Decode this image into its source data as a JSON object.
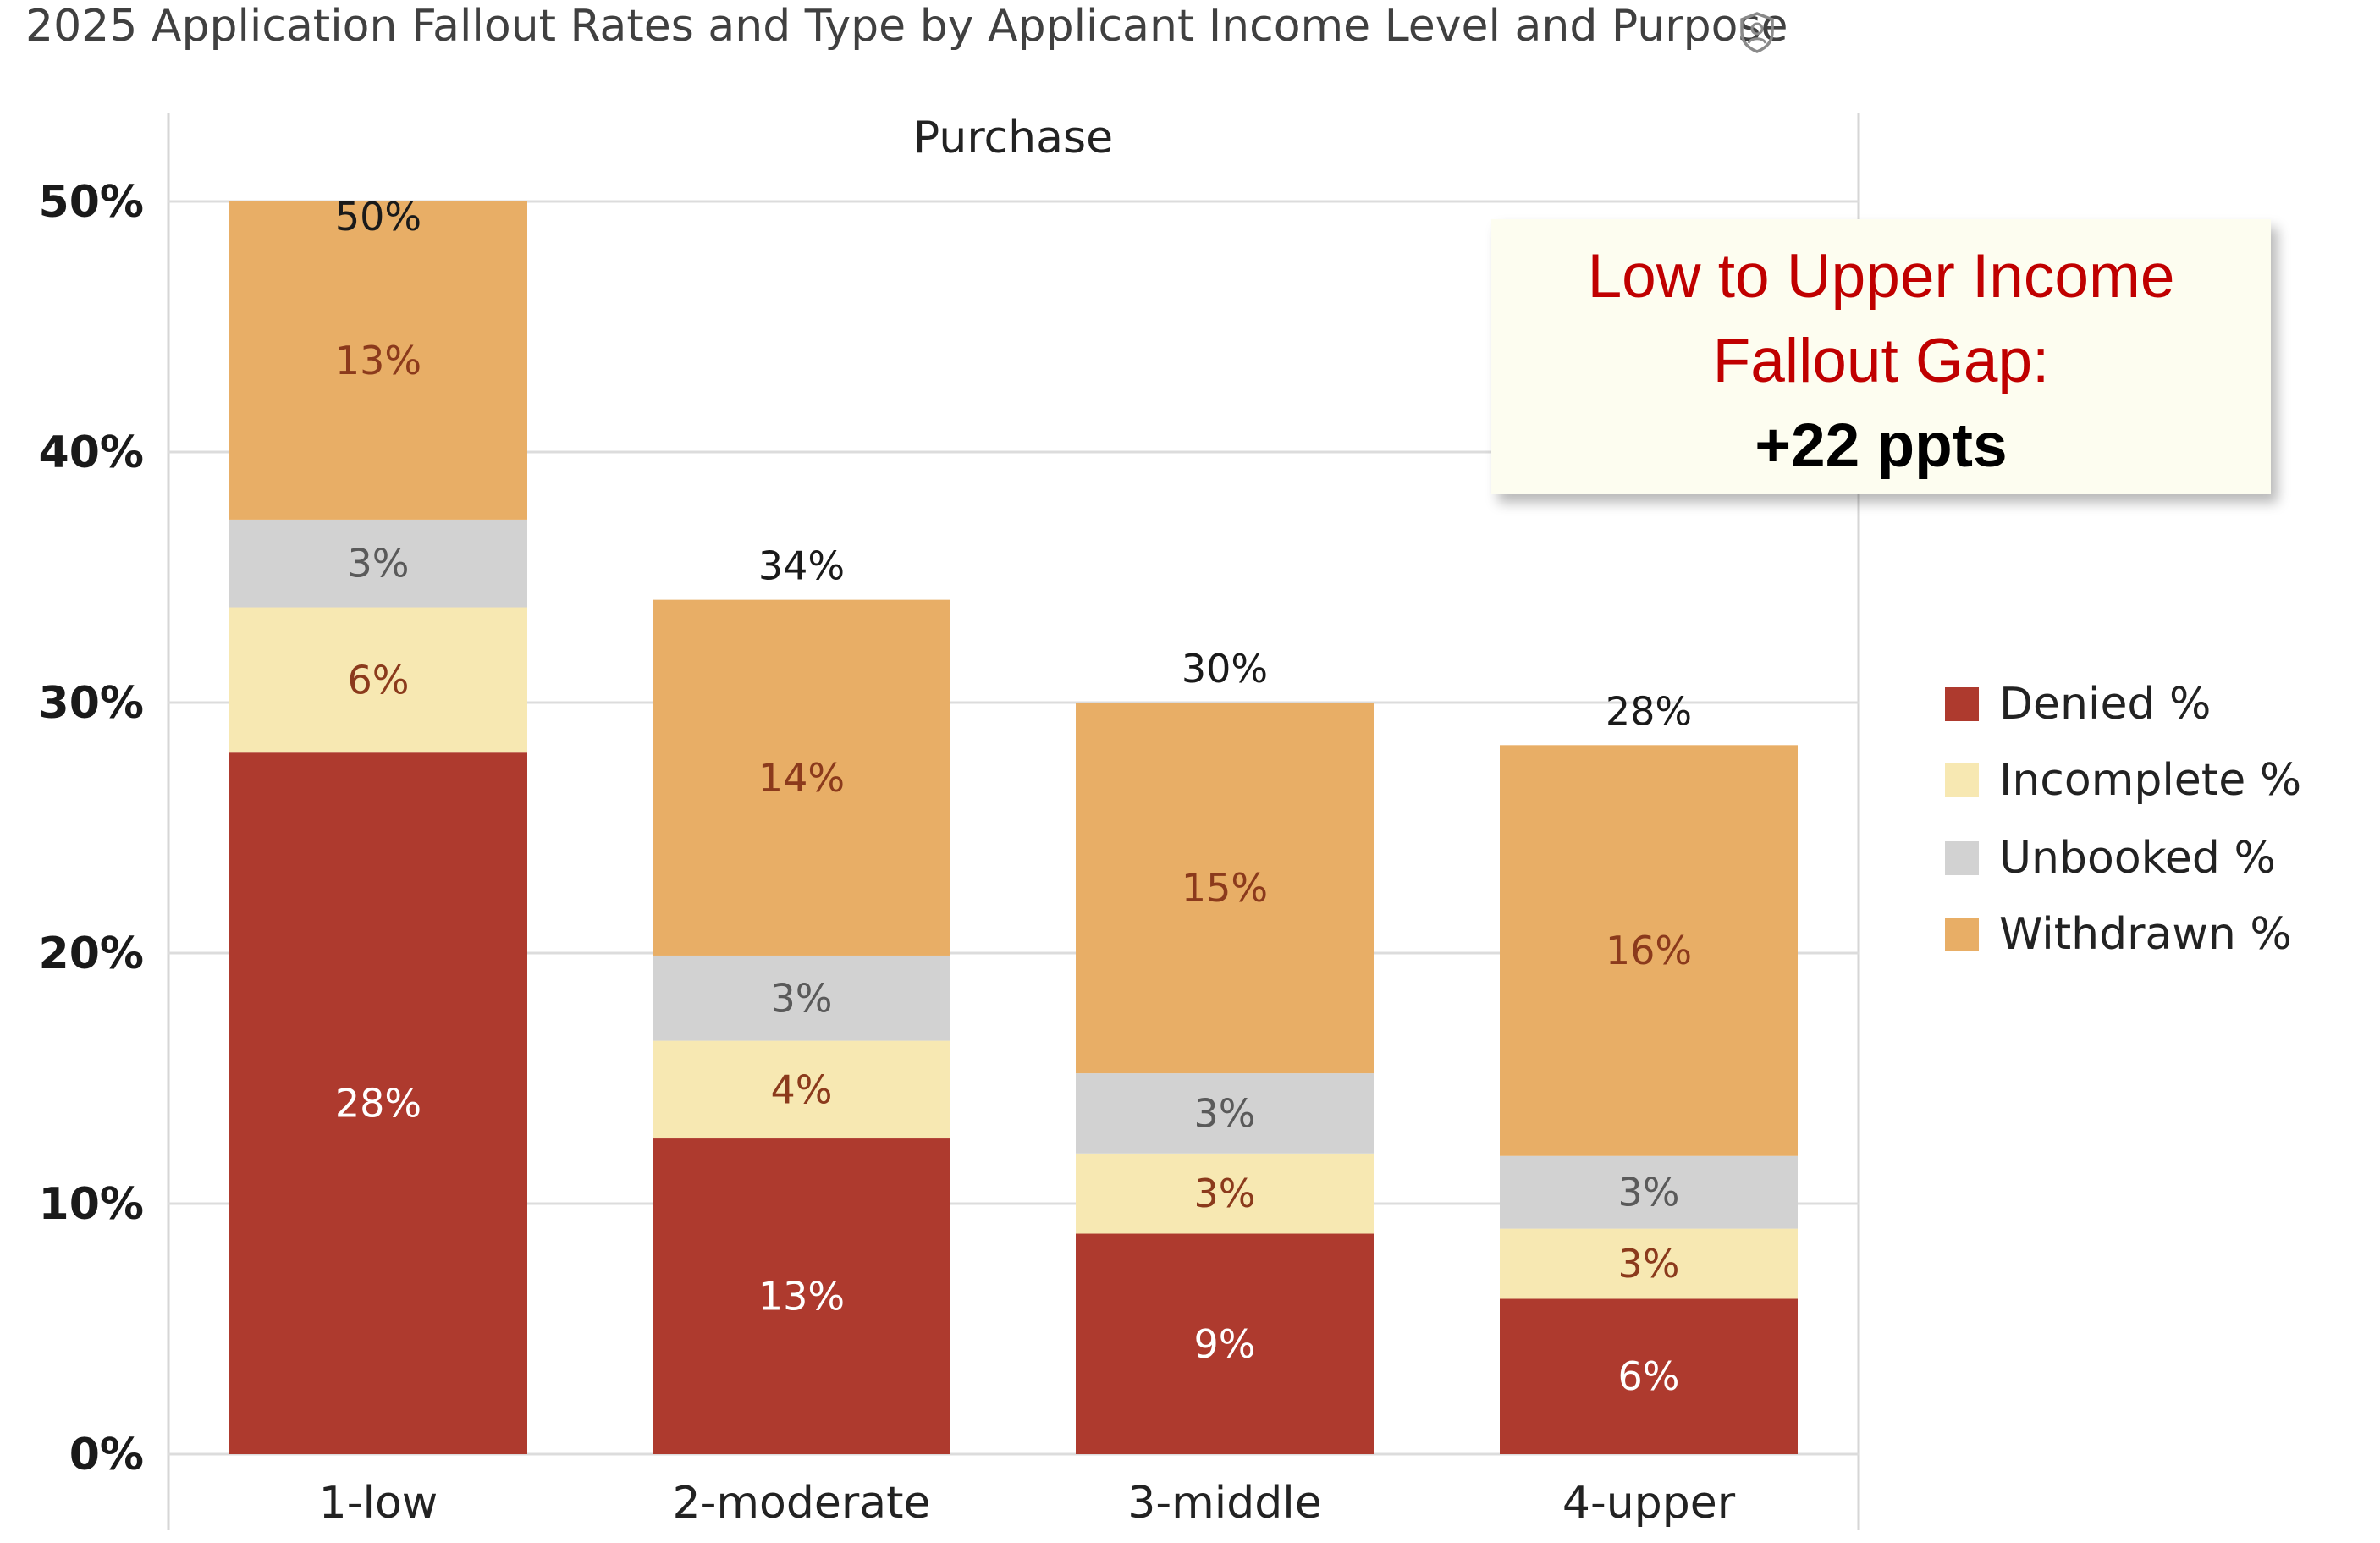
{
  "title": "2025 Application Fallout Rates and Type by Applicant Income Level and Purpose",
  "title_icon": "shield-icon",
  "callout": {
    "line1": "Low to Upper Income",
    "line2": "Fallout Gap:",
    "line3": "+22 ppts"
  },
  "colors": {
    "denied": "#ae3a2e",
    "incomplete": "#f7e8b2",
    "unbooked": "#d2d2d2",
    "withdrawn": "#e8ae66",
    "denied_label": "#ffffff",
    "incomplete_label": "#8b3a1c",
    "unbooked_label": "#5a5a5a",
    "withdrawn_label": "#8b3a1c"
  },
  "chart_data": {
    "type": "bar",
    "stacked": true,
    "panel_title": "Purchase",
    "categories": [
      "1-low",
      "2-moderate",
      "3-middle",
      "4-upper"
    ],
    "series": [
      {
        "name": "Denied %",
        "key": "denied",
        "values": [
          28,
          12.6,
          8.8,
          6.2
        ],
        "labels": [
          "28%",
          "13%",
          "9%",
          "6%"
        ]
      },
      {
        "name": "Incomplete %",
        "key": "incomplete",
        "values": [
          5.8,
          3.9,
          3.2,
          2.8
        ],
        "labels": [
          "6%",
          "4%",
          "3%",
          "3%"
        ]
      },
      {
        "name": "Unbooked %",
        "key": "unbooked",
        "values": [
          3.5,
          3.4,
          3.2,
          2.9
        ],
        "labels": [
          "3%",
          "3%",
          "3%",
          "3%"
        ]
      },
      {
        "name": "Withdrawn %",
        "key": "withdrawn",
        "values": [
          12.7,
          14.2,
          14.8,
          16.4
        ],
        "labels": [
          "13%",
          "14%",
          "15%",
          "16%"
        ]
      }
    ],
    "totals": [
      50,
      34.1,
      30,
      28.3
    ],
    "total_labels": [
      "50%",
      "34%",
      "30%",
      "28%"
    ],
    "y_ticks": [
      "0%",
      "10%",
      "20%",
      "30%",
      "40%",
      "50%"
    ],
    "y_tick_values": [
      0,
      10,
      20,
      30,
      40,
      50
    ],
    "ylim": [
      0,
      50
    ],
    "grid": true,
    "legend_position": "right"
  }
}
